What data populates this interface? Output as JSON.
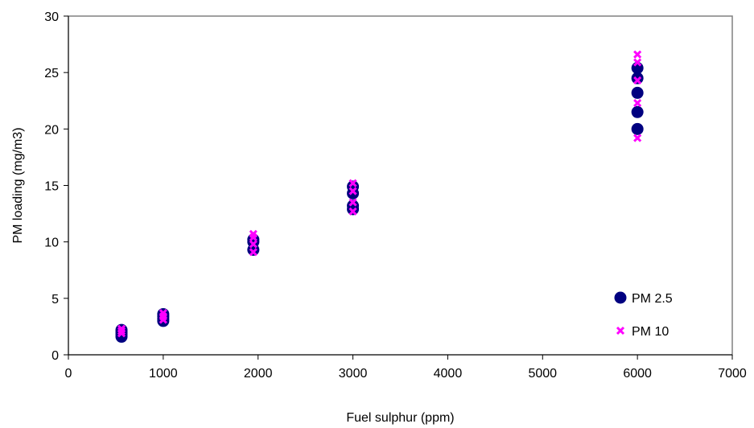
{
  "chart_data": {
    "type": "scatter",
    "title": "",
    "xlabel": "Fuel sulphur (ppm)",
    "ylabel": "PM loading (mg/m3)",
    "xlim": [
      0,
      7000
    ],
    "ylim": [
      0,
      30
    ],
    "xticks": [
      "0",
      "1000",
      "2000",
      "3000",
      "4000",
      "5000",
      "6000",
      "7000"
    ],
    "yticks": [
      "0",
      "5",
      "10",
      "15",
      "20",
      "25",
      "30"
    ],
    "grid": false,
    "legend_position": "bottom-right",
    "series": [
      {
        "name": "PM 2.5",
        "marker": "circle",
        "color": "#000080",
        "points": [
          [
            560,
            1.6
          ],
          [
            560,
            1.8
          ],
          [
            560,
            2.0
          ],
          [
            560,
            2.2
          ],
          [
            1000,
            3.0
          ],
          [
            1000,
            3.2
          ],
          [
            1000,
            3.4
          ],
          [
            1000,
            3.6
          ],
          [
            1950,
            9.3
          ],
          [
            1950,
            10.0
          ],
          [
            1950,
            10.2
          ],
          [
            3000,
            12.9
          ],
          [
            3000,
            13.2
          ],
          [
            3000,
            14.3
          ],
          [
            3000,
            14.9
          ],
          [
            6000,
            20.0
          ],
          [
            6000,
            21.5
          ],
          [
            6000,
            23.2
          ],
          [
            6000,
            24.5
          ],
          [
            6000,
            25.4
          ]
        ]
      },
      {
        "name": "PM 10",
        "marker": "x",
        "color": "#FF00FF",
        "points": [
          [
            560,
            1.9
          ],
          [
            560,
            2.1
          ],
          [
            560,
            2.3
          ],
          [
            1000,
            3.1
          ],
          [
            1000,
            3.4
          ],
          [
            1000,
            3.7
          ],
          [
            1950,
            9.1
          ],
          [
            1950,
            9.8
          ],
          [
            1950,
            10.4
          ],
          [
            1950,
            10.7
          ],
          [
            3000,
            12.7
          ],
          [
            3000,
            13.5
          ],
          [
            3000,
            14.5
          ],
          [
            3000,
            15.2
          ],
          [
            6000,
            19.2
          ],
          [
            6000,
            22.3
          ],
          [
            6000,
            24.3
          ],
          [
            6000,
            25.9
          ],
          [
            6000,
            26.6
          ]
        ]
      }
    ]
  }
}
